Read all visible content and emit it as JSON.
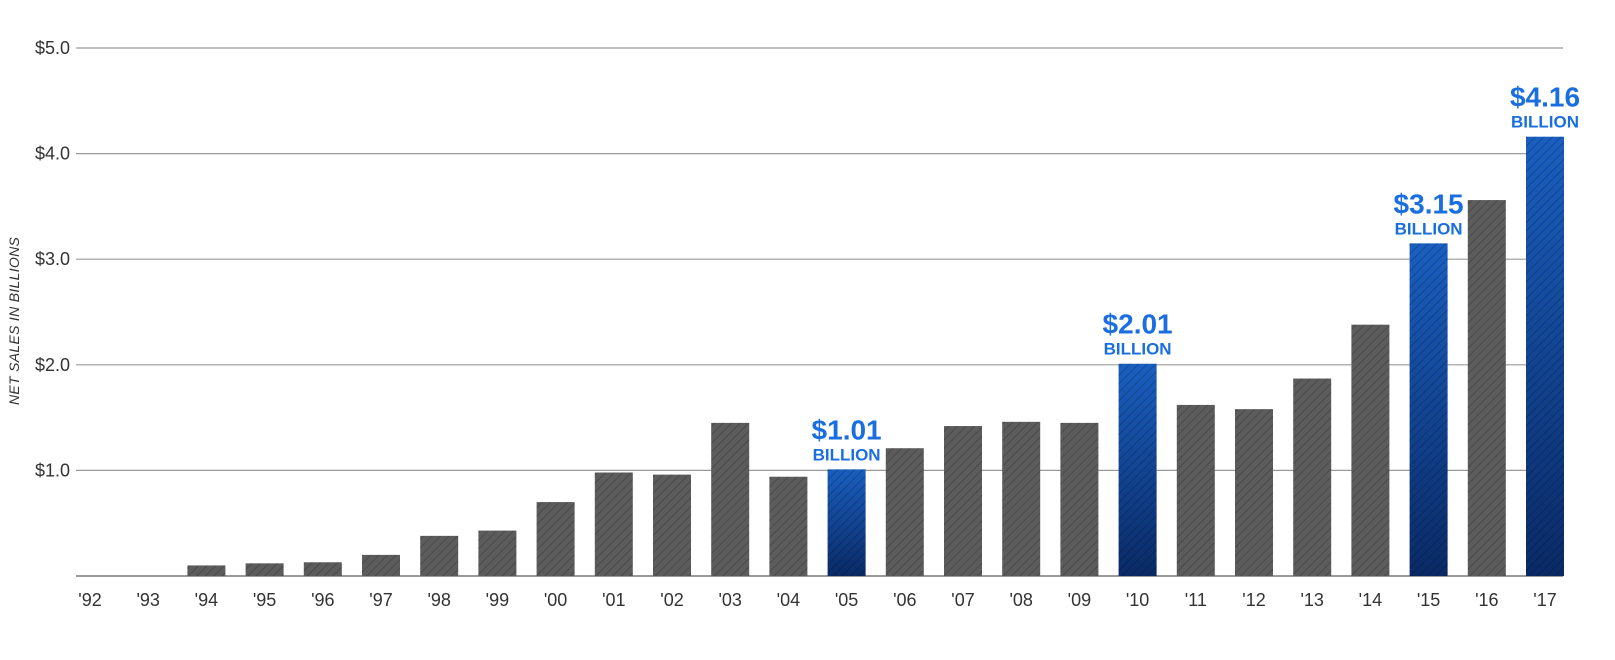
{
  "chart_data": {
    "type": "bar",
    "ylabel": "NET SALES IN BILLIONS",
    "categories": [
      "'92",
      "'93",
      "'94",
      "'95",
      "'96",
      "'97",
      "'98",
      "'99",
      "'00",
      "'01",
      "'02",
      "'03",
      "'04",
      "'05",
      "'06",
      "'07",
      "'08",
      "'09",
      "'10",
      "'11",
      "'12",
      "'13",
      "'14",
      "'15",
      "'16",
      "'17"
    ],
    "values": [
      0,
      0,
      0.1,
      0.12,
      0.13,
      0.2,
      0.38,
      0.43,
      0.7,
      0.98,
      0.96,
      1.45,
      0.94,
      1.01,
      1.21,
      1.42,
      1.46,
      1.45,
      2.01,
      1.62,
      1.58,
      1.87,
      2.38,
      3.15,
      3.56,
      4.16
    ],
    "highlight": [
      "'05",
      "'10",
      "'15",
      "'17"
    ],
    "yticks": [
      {
        "value": 1.0,
        "label": "$1.0"
      },
      {
        "value": 2.0,
        "label": "$2.0"
      },
      {
        "value": 3.0,
        "label": "$3.0"
      },
      {
        "value": 4.0,
        "label": "$4.0"
      },
      {
        "value": 5.0,
        "label": "$5.0"
      }
    ],
    "ylim": [
      0,
      5
    ],
    "grid": true,
    "annotations": [
      {
        "category": "'05",
        "value_label": "$1.01",
        "unit_label": "BILLION"
      },
      {
        "category": "'10",
        "value_label": "$2.01",
        "unit_label": "BILLION"
      },
      {
        "category": "'15",
        "value_label": "$3.15",
        "unit_label": "BILLION"
      },
      {
        "category": "'17",
        "value_label": "$4.16",
        "unit_label": "BILLION"
      }
    ],
    "colors": {
      "bar": "#5a5a5a",
      "highlight_bar_top": "#1a5fc0",
      "highlight_bar_bottom": "#0a2a66",
      "annotation": "#1a6ee0",
      "grid": "#9a9a9a"
    }
  }
}
